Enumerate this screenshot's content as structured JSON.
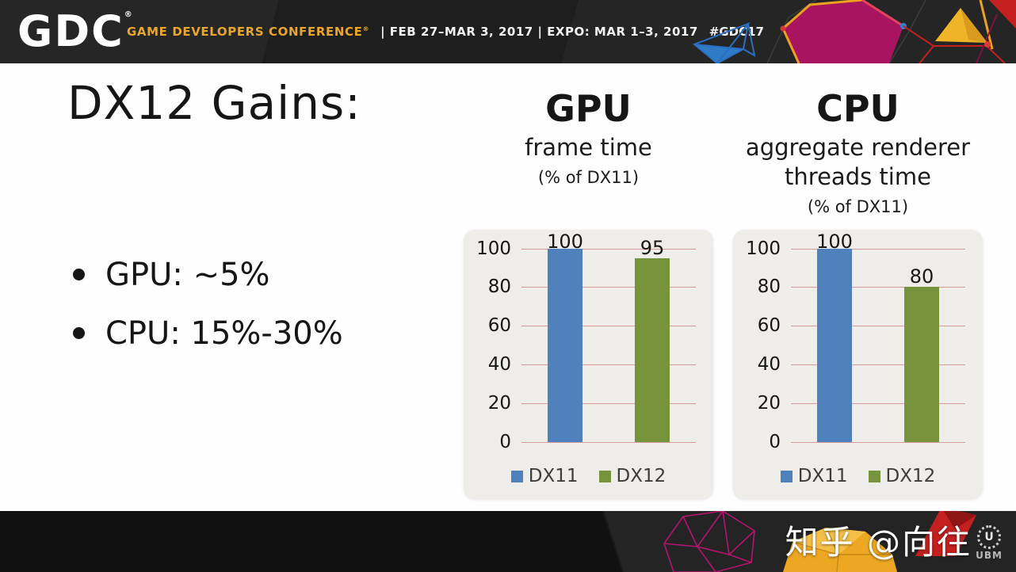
{
  "header": {
    "logo_text": "GDC",
    "logo_mark": "®",
    "conference_label": "GAME DEVELOPERS CONFERENCE",
    "conference_mark": "®",
    "dates_text": "|  FEB 27–MAR 3, 2017  |  EXPO: MAR 1–3, 2017",
    "hashtag": "#GDC17"
  },
  "slide": {
    "title": "DX12 Gains:",
    "bullets": [
      "GPU:  ~5%",
      "CPU:  15%-30%"
    ]
  },
  "chart_data": [
    {
      "type": "bar",
      "title": "GPU",
      "subtitle": "frame time",
      "unit_note": "(% of DX11)",
      "categories": [
        "DX11",
        "DX12"
      ],
      "values": [
        100,
        95
      ],
      "ylim": [
        0,
        100
      ],
      "yticks": [
        0,
        20,
        40,
        60,
        80,
        100
      ],
      "series_colors": [
        "#4f81bd",
        "#77933c"
      ],
      "legend": [
        "DX11",
        "DX12"
      ],
      "legend_position": "bottom",
      "grid": true
    },
    {
      "type": "bar",
      "title": "CPU",
      "subtitle": "aggregate renderer threads time",
      "unit_note": "(% of DX11)",
      "categories": [
        "DX11",
        "DX12"
      ],
      "values": [
        100,
        80
      ],
      "ylim": [
        0,
        100
      ],
      "yticks": [
        0,
        20,
        40,
        60,
        80,
        100
      ],
      "series_colors": [
        "#4f81bd",
        "#77933c"
      ],
      "legend": [
        "DX11",
        "DX12"
      ],
      "legend_position": "bottom",
      "grid": true
    }
  ],
  "footer": {
    "watermark": "知乎 @向往",
    "ubm_letter": "U",
    "ubm_label": "UBM"
  },
  "colors": {
    "accent_gold": "#e8a62c",
    "bar_blue": "#4f81bd",
    "bar_green": "#77933c",
    "gridline": "#d49a97",
    "panel_bg": "#efedea",
    "deco_magenta": "#a81460",
    "deco_yellow": "#f0b429",
    "deco_red": "#c42020",
    "deco_blue": "#2f7fd0",
    "header_bg": "#222222",
    "footer_bg": "#1a1a1a"
  }
}
